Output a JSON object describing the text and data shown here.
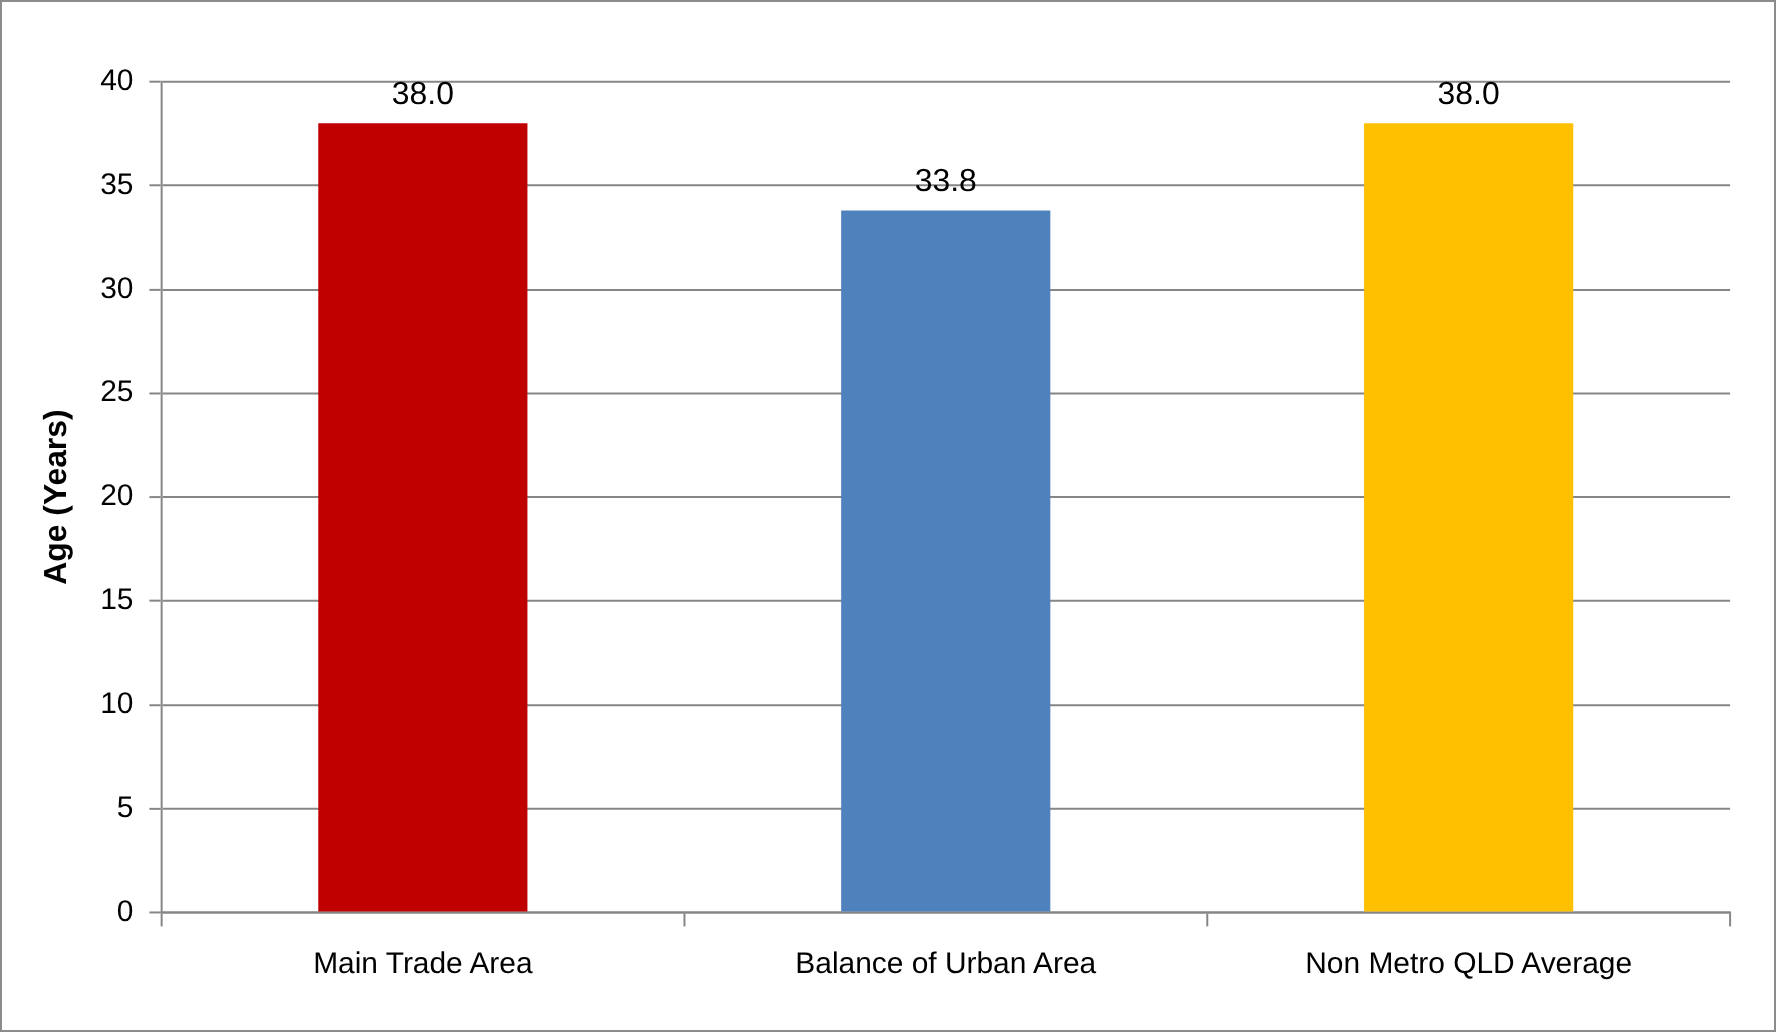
{
  "chart_data": {
    "type": "bar",
    "ylabel": "Age (Years)",
    "categories": [
      "Main Trade Area",
      "Balance of Urban Area",
      "Non Metro QLD Average"
    ],
    "values": [
      38.0,
      33.8,
      38.0
    ],
    "value_labels": [
      "38.0",
      "33.8",
      "38.0"
    ],
    "colors": [
      "#c00000",
      "#4f81bd",
      "#ffc000"
    ],
    "ylim": [
      0,
      40
    ],
    "yticks": [
      0,
      5,
      10,
      15,
      20,
      25,
      30,
      35,
      40
    ],
    "grid": "y",
    "legend": false
  }
}
